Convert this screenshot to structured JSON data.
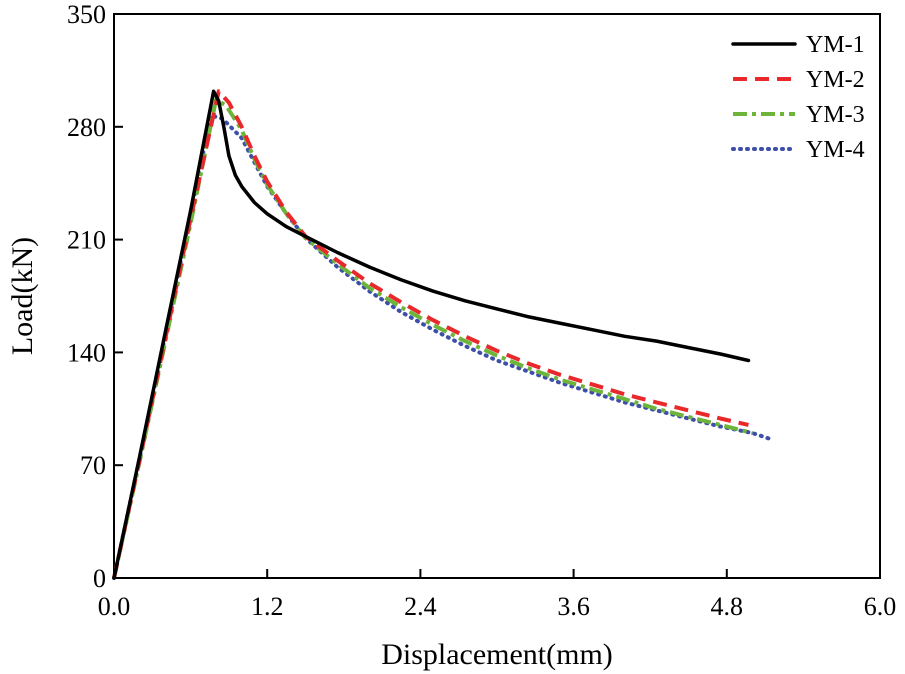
{
  "chart_data": {
    "type": "line",
    "title": "",
    "xlabel": "Displacement(mm)",
    "ylabel": "Load(kN)",
    "xlim": [
      0,
      6
    ],
    "ylim": [
      0,
      350
    ],
    "xticks": [
      0,
      1.2,
      2.4,
      3.6,
      4.8,
      6
    ],
    "xtick_labels": [
      "0.0",
      "1.2",
      "2.4",
      "3.6",
      "4.8",
      "6.0"
    ],
    "yticks": [
      0,
      70,
      140,
      210,
      280,
      350
    ],
    "ytick_labels": [
      "0",
      "70",
      "140",
      "210",
      "280",
      "350"
    ],
    "grid": false,
    "legend_position": "top-right",
    "series": [
      {
        "name": "YM-1",
        "color": "#000000",
        "style": "solid",
        "x": [
          0,
          0.2,
          0.4,
          0.6,
          0.78,
          0.82,
          0.86,
          0.9,
          0.95,
          1.0,
          1.1,
          1.2,
          1.35,
          1.5,
          1.75,
          2.0,
          2.25,
          2.5,
          2.75,
          3.0,
          3.25,
          3.5,
          3.75,
          4.0,
          4.25,
          4.5,
          4.75,
          4.97
        ],
        "y": [
          0,
          75,
          152,
          228,
          302,
          296,
          280,
          262,
          250,
          243,
          233,
          226,
          218,
          212,
          202,
          193,
          185,
          178,
          172,
          167,
          162,
          158,
          154,
          150,
          147,
          143,
          139,
          135
        ]
      },
      {
        "name": "YM-2",
        "color": "#e8282a",
        "style": "dashed",
        "x": [
          0,
          0.2,
          0.4,
          0.6,
          0.82,
          0.9,
          1.0,
          1.1,
          1.2,
          1.35,
          1.5,
          1.75,
          2.0,
          2.25,
          2.5,
          2.75,
          3.0,
          3.25,
          3.5,
          3.75,
          4.0,
          4.25,
          4.5,
          4.75,
          4.97
        ],
        "y": [
          0,
          73,
          148,
          223,
          302,
          295,
          280,
          262,
          246,
          227,
          212,
          197,
          183,
          171,
          160,
          150,
          141,
          133,
          126,
          120,
          114,
          109,
          104,
          99,
          95
        ]
      },
      {
        "name": "YM-3",
        "color": "#6cb43a",
        "style": "dashdot",
        "x": [
          0,
          0.2,
          0.4,
          0.6,
          0.8,
          0.88,
          1.0,
          1.1,
          1.2,
          1.35,
          1.5,
          1.75,
          2.0,
          2.25,
          2.5,
          2.75,
          3.0,
          3.25,
          3.5,
          3.75,
          4.0,
          4.25,
          4.5,
          4.75,
          5.0
        ],
        "y": [
          0,
          72,
          146,
          220,
          297,
          293,
          278,
          260,
          244,
          226,
          211,
          195,
          180,
          168,
          157,
          147,
          138,
          130,
          123,
          117,
          111,
          105,
          100,
          95,
          90
        ]
      },
      {
        "name": "YM-4",
        "color": "#3d4fa8",
        "style": "dotted",
        "x": [
          0,
          0.2,
          0.4,
          0.6,
          0.76,
          0.85,
          1.0,
          1.1,
          1.2,
          1.35,
          1.5,
          1.75,
          2.0,
          2.25,
          2.5,
          2.75,
          3.0,
          3.25,
          3.5,
          3.75,
          4.0,
          4.25,
          4.5,
          4.75,
          5.0,
          5.15
        ],
        "y": [
          0,
          74,
          150,
          226,
          287,
          285,
          273,
          258,
          243,
          226,
          211,
          193,
          178,
          165,
          154,
          144,
          135,
          128,
          121,
          115,
          109,
          104,
          99,
          94,
          90,
          86
        ]
      }
    ]
  }
}
